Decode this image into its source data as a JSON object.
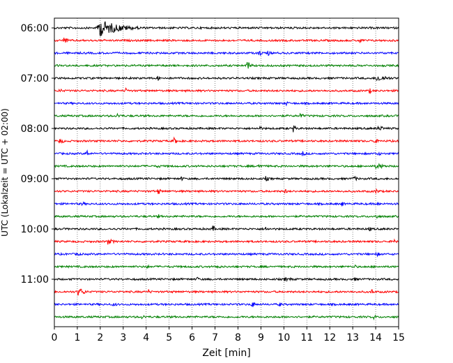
{
  "chart_data": {
    "type": "line",
    "title": "",
    "xlabel": "Zeit  [min]",
    "ylabel": "UTC (Lokalzeit = UTC + 02:00)",
    "xlim": [
      0,
      15
    ],
    "x_ticks": [
      0,
      1,
      2,
      3,
      4,
      5,
      6,
      7,
      8,
      9,
      10,
      11,
      12,
      13,
      14,
      15
    ],
    "x_tick_labels": [
      "0",
      "1",
      "2",
      "3",
      "4",
      "5",
      "6",
      "7",
      "8",
      "9",
      "10",
      "11",
      "12",
      "13",
      "14",
      "15"
    ],
    "y_tick_labels": [
      "06:00",
      "07:00",
      "08:00",
      "09:00",
      "10:00",
      "11:00"
    ],
    "grid": "vertical dotted at each minute",
    "colors": [
      "#000000",
      "#ff0000",
      "#0000ff",
      "#008000"
    ],
    "traces": [
      {
        "start": "06:00",
        "events": [
          {
            "t": 1.9,
            "amp": 14,
            "dur": 3.5
          }
        ]
      },
      {
        "start": "06:15",
        "events": [
          {
            "t": 0.4,
            "amp": 6,
            "dur": 0.3
          },
          {
            "t": 13.3,
            "amp": 5,
            "dur": 0.2
          }
        ]
      },
      {
        "start": "06:30",
        "events": [
          {
            "t": 8.9,
            "amp": 5,
            "dur": 0.3
          },
          {
            "t": 9.3,
            "amp": 4,
            "dur": 0.2
          }
        ]
      },
      {
        "start": "06:45",
        "events": [
          {
            "t": 8.4,
            "amp": 6,
            "dur": 0.3
          }
        ]
      },
      {
        "start": "07:00",
        "events": [
          {
            "t": 4.5,
            "amp": 4,
            "dur": 0.2
          },
          {
            "t": 14.0,
            "amp": 5,
            "dur": 1.0
          }
        ]
      },
      {
        "start": "07:15",
        "events": [
          {
            "t": 0.2,
            "amp": 3,
            "dur": 0.4
          },
          {
            "t": 3.1,
            "amp": 5,
            "dur": 0.2
          },
          {
            "t": 13.7,
            "amp": 5,
            "dur": 0.2
          }
        ]
      },
      {
        "start": "07:30",
        "events": [
          {
            "t": 10.1,
            "amp": 4,
            "dur": 0.2
          },
          {
            "t": 15.0,
            "amp": 4,
            "dur": 0.2
          }
        ]
      },
      {
        "start": "07:45",
        "events": [
          {
            "t": 2.7,
            "amp": 4,
            "dur": 0.4
          },
          {
            "t": 10.7,
            "amp": 4,
            "dur": 0.3
          }
        ]
      },
      {
        "start": "08:00",
        "events": [
          {
            "t": 8.9,
            "amp": 6,
            "dur": 0.2
          },
          {
            "t": 10.4,
            "amp": 6,
            "dur": 0.2
          },
          {
            "t": 14.1,
            "amp": 4,
            "dur": 0.5
          }
        ]
      },
      {
        "start": "08:15",
        "events": [
          {
            "t": 0.2,
            "amp": 4,
            "dur": 0.4
          },
          {
            "t": 5.2,
            "amp": 5,
            "dur": 0.3
          },
          {
            "t": 13.9,
            "amp": 5,
            "dur": 0.3
          }
        ]
      },
      {
        "start": "08:30",
        "events": [
          {
            "t": 1.4,
            "amp": 6,
            "dur": 0.2
          },
          {
            "t": 10.8,
            "amp": 4,
            "dur": 0.3
          },
          {
            "t": 14.0,
            "amp": 4,
            "dur": 0.4
          }
        ]
      },
      {
        "start": "08:45",
        "events": [
          {
            "t": 4.5,
            "amp": 4,
            "dur": 0.2
          },
          {
            "t": 8.9,
            "amp": 6,
            "dur": 0.2
          },
          {
            "t": 14.0,
            "amp": 4,
            "dur": 0.8
          }
        ]
      },
      {
        "start": "09:00",
        "events": [
          {
            "t": 5.5,
            "amp": 4,
            "dur": 0.2
          },
          {
            "t": 9.2,
            "amp": 4,
            "dur": 0.3
          },
          {
            "t": 13.0,
            "amp": 4,
            "dur": 0.4
          }
        ]
      },
      {
        "start": "09:15",
        "events": [
          {
            "t": 4.5,
            "amp": 6,
            "dur": 0.2
          },
          {
            "t": 10.0,
            "amp": 4,
            "dur": 0.3
          },
          {
            "t": 14.0,
            "amp": 4,
            "dur": 0.3
          }
        ]
      },
      {
        "start": "09:30",
        "events": [
          {
            "t": 1.2,
            "amp": 4,
            "dur": 0.2
          },
          {
            "t": 12.5,
            "amp": 5,
            "dur": 0.2
          },
          {
            "t": 14.0,
            "amp": 4,
            "dur": 0.3
          }
        ]
      },
      {
        "start": "09:45",
        "events": [
          {
            "t": 4.5,
            "amp": 4,
            "dur": 0.2
          },
          {
            "t": 14.0,
            "amp": 4,
            "dur": 0.3
          }
        ]
      },
      {
        "start": "10:00",
        "events": [
          {
            "t": 6.9,
            "amp": 5,
            "dur": 0.2
          },
          {
            "t": 9.2,
            "amp": 4,
            "dur": 0.2
          },
          {
            "t": 13.7,
            "amp": 4,
            "dur": 0.2
          }
        ]
      },
      {
        "start": "10:15",
        "events": [
          {
            "t": 2.3,
            "amp": 5,
            "dur": 1.2
          },
          {
            "t": 14.8,
            "amp": 5,
            "dur": 0.2
          }
        ]
      },
      {
        "start": "10:30",
        "events": [
          {
            "t": 1.0,
            "amp": 5,
            "dur": 0.2
          },
          {
            "t": 14.0,
            "amp": 4,
            "dur": 0.3
          }
        ]
      },
      {
        "start": "10:45",
        "events": [
          {
            "t": 4.0,
            "amp": 4,
            "dur": 0.2
          },
          {
            "t": 7.1,
            "amp": 5,
            "dur": 0.2
          },
          {
            "t": 13.0,
            "amp": 4,
            "dur": 0.3
          }
        ]
      },
      {
        "start": "11:00",
        "events": [
          {
            "t": 6.2,
            "amp": 4,
            "dur": 0.2
          },
          {
            "t": 10.0,
            "amp": 3,
            "dur": 0.8
          },
          {
            "t": 13.0,
            "amp": 4,
            "dur": 0.3
          }
        ]
      },
      {
        "start": "11:15",
        "events": [
          {
            "t": 1.0,
            "amp": 6,
            "dur": 0.6
          },
          {
            "t": 4.1,
            "amp": 4,
            "dur": 0.2
          },
          {
            "t": 13.8,
            "amp": 5,
            "dur": 0.2
          }
        ]
      },
      {
        "start": "11:30",
        "events": [
          {
            "t": 2.5,
            "amp": 3,
            "dur": 0.5
          },
          {
            "t": 8.6,
            "amp": 6,
            "dur": 0.2
          },
          {
            "t": 9.8,
            "amp": 4,
            "dur": 0.2
          }
        ]
      },
      {
        "start": "11:45",
        "events": [
          {
            "t": 3.8,
            "amp": 3,
            "dur": 0.4
          },
          {
            "t": 13.9,
            "amp": 4,
            "dur": 0.2
          }
        ]
      }
    ]
  }
}
